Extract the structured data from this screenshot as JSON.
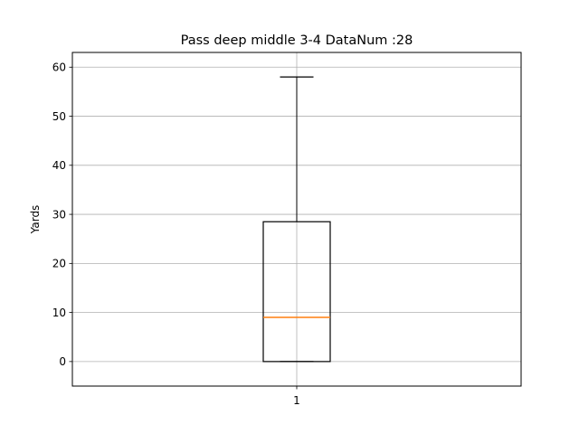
{
  "chart_data": {
    "type": "box",
    "title": "Pass deep middle    3-4    DataNum :28",
    "ylabel": "Yards",
    "xlabel": "",
    "categories": [
      "1"
    ],
    "boxes": [
      {
        "category": "1",
        "whisker_low": 0,
        "q1": 0,
        "median": 9,
        "q3": 28.5,
        "whisker_high": 58
      }
    ],
    "ylim": [
      -5,
      63
    ],
    "yticks": [
      0,
      10,
      20,
      30,
      40,
      50,
      60
    ],
    "grid": true,
    "colors": {
      "box": "#000000",
      "median": "#ff7f0e",
      "grid": "#b0b0b0"
    }
  }
}
